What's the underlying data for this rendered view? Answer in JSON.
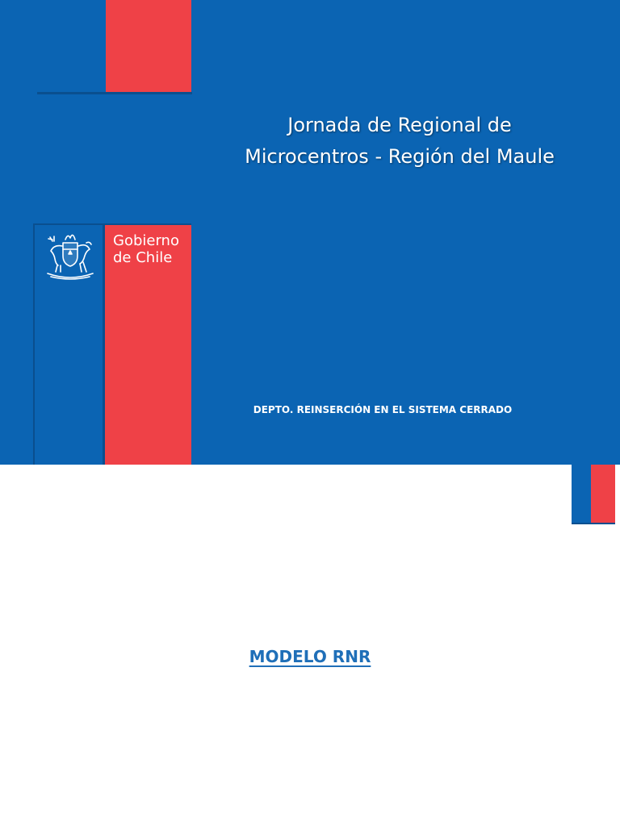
{
  "slide1": {
    "title_line1": "Jornada de Regional de",
    "title_line2": "Microcentros - Región del Maule",
    "logo": {
      "line1": "Gobierno",
      "line2": "de Chile",
      "crest_icon": "chile-coat-of-arms-icon"
    },
    "subtitle": "DEPTO. REINSERCIÓN EN EL SISTEMA CERRADO"
  },
  "slide2": {
    "heading": "MODELO RNR"
  },
  "colors": {
    "primary_blue": "#0b64b3",
    "accent_red": "#ef4147",
    "heading_blue": "#1f6fb8"
  }
}
